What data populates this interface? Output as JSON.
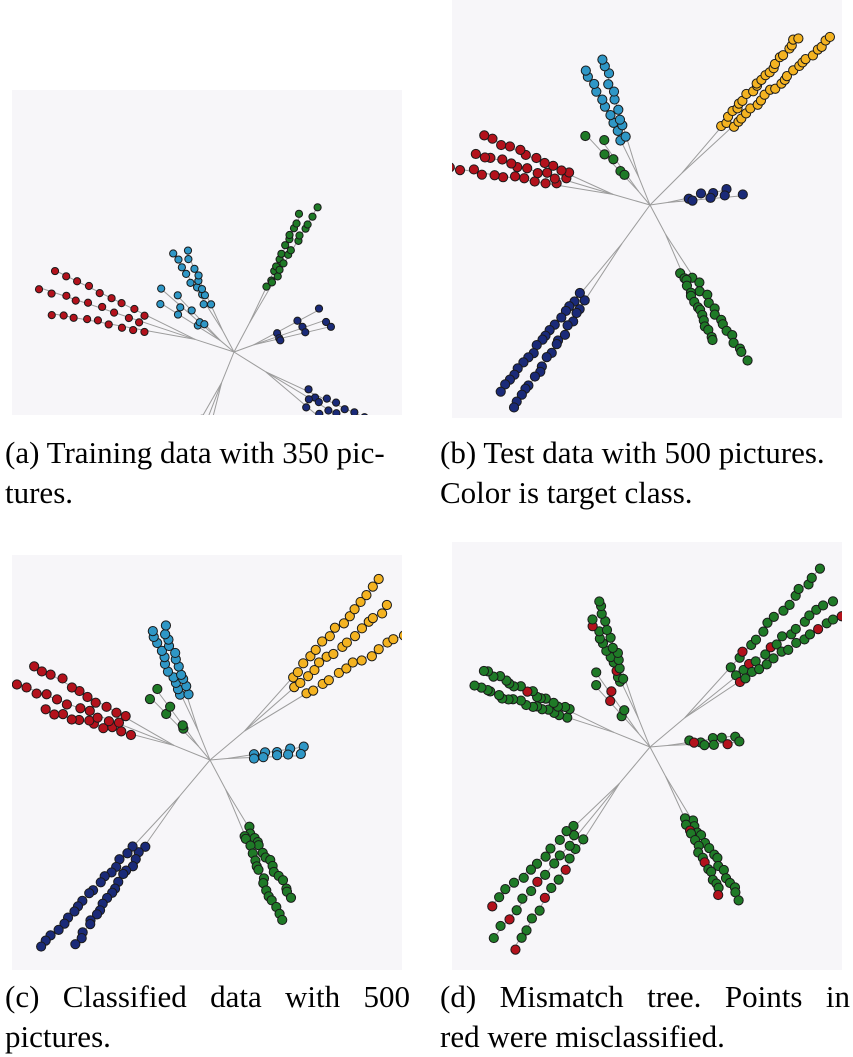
{
  "colors": {
    "red": "#b3121c",
    "light_blue": "#2f97c6",
    "green": "#1f7a27",
    "navy": "#1a2a78",
    "yellow": "#f4b321",
    "edge": "#9c9c9c",
    "panel_bg": "#f7f6f9"
  },
  "panels": [
    {
      "id": "a",
      "caption_line1": "(a) Training data with 350 pic-",
      "caption_line2": "tures."
    },
    {
      "id": "b",
      "caption_line1": "(b) Test data with 500 pictures.",
      "caption_line2": "Color is target class."
    },
    {
      "id": "c",
      "caption_line1": "(c) Classified data with 500",
      "caption_line2": "pictures."
    },
    {
      "id": "d",
      "caption_line1": "(d) Mismatch tree.  Points in",
      "caption_line2": "red were misclassified."
    }
  ]
}
